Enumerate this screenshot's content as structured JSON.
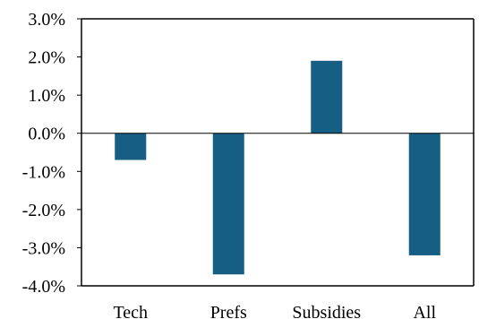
{
  "chart_data": {
    "type": "bar",
    "categories": [
      "Tech",
      "Prefs",
      "Subsidies",
      "All"
    ],
    "values": [
      -0.7,
      -3.7,
      1.9,
      -3.2
    ],
    "value_unit": "%",
    "title": "",
    "xlabel": "",
    "ylabel": "",
    "ylim": [
      -4.0,
      3.0
    ],
    "yticks": [
      "3.0%",
      "2.0%",
      "1.0%",
      "0.0%",
      "-1.0%",
      "-2.0%",
      "-3.0%",
      "-4.0%"
    ],
    "grid": false,
    "legend": "none",
    "bar_color": "#165E83",
    "axis_color": "#000000"
  }
}
